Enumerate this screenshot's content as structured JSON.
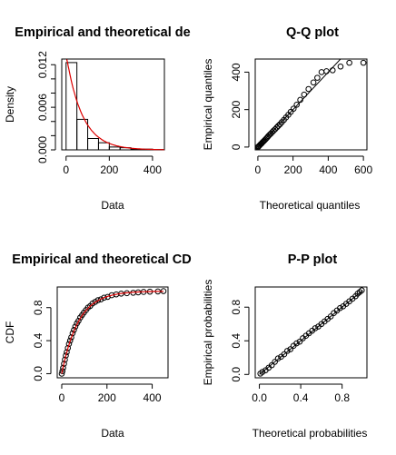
{
  "chart_data": [
    {
      "type": "histogram",
      "title": "Empirical and theoretical de",
      "xlabel": "Data",
      "ylabel": "Density",
      "xlim": [
        -20,
        455
      ],
      "ylim": [
        0,
        0.0128
      ],
      "xticks": [
        0,
        200,
        400
      ],
      "yticks": [
        0,
        0.002,
        0.004,
        0.006,
        0.008,
        0.01,
        0.012
      ],
      "ytick_labels": [
        "0.000",
        "0.006",
        "0.012"
      ],
      "ytick_labeled": [
        0,
        0.006,
        0.012
      ],
      "bins": [
        {
          "x0": 0,
          "x1": 50,
          "density": 0.0123
        },
        {
          "x0": 50,
          "x1": 100,
          "density": 0.0043
        },
        {
          "x0": 100,
          "x1": 150,
          "density": 0.0016
        },
        {
          "x0": 150,
          "x1": 200,
          "density": 0.001
        },
        {
          "x0": 200,
          "x1": 250,
          "density": 0.0004
        },
        {
          "x0": 250,
          "x1": 300,
          "density": 0.0003
        },
        {
          "x0": 300,
          "x1": 350,
          "density": 0.0001
        },
        {
          "x0": 350,
          "x1": 400,
          "density": 0.0001
        },
        {
          "x0": 400,
          "x1": 450,
          "density": 5e-05
        }
      ],
      "curve": {
        "rate": 0.0135,
        "color": "#dd0000"
      }
    },
    {
      "type": "scatter",
      "title": "Q-Q plot",
      "xlabel": "Theoretical quantiles",
      "ylabel": "Empirical quantiles",
      "xlim": [
        -15,
        620
      ],
      "ylim": [
        -15,
        470
      ],
      "xticks": [
        0,
        200,
        400,
        600
      ],
      "yticks": [
        0,
        200,
        400
      ],
      "reference_line": [
        [
          0,
          0
        ],
        [
          600,
          600
        ]
      ],
      "points": [
        [
          0,
          0
        ],
        [
          3,
          2
        ],
        [
          6,
          5
        ],
        [
          10,
          9
        ],
        [
          14,
          13
        ],
        [
          18,
          17
        ],
        [
          22,
          20
        ],
        [
          27,
          26
        ],
        [
          32,
          30
        ],
        [
          37,
          35
        ],
        [
          42,
          40
        ],
        [
          48,
          46
        ],
        [
          54,
          52
        ],
        [
          60,
          59
        ],
        [
          67,
          66
        ],
        [
          74,
          72
        ],
        [
          82,
          80
        ],
        [
          90,
          88
        ],
        [
          98,
          95
        ],
        [
          107,
          104
        ],
        [
          116,
          113
        ],
        [
          126,
          122
        ],
        [
          136,
          133
        ],
        [
          148,
          145
        ],
        [
          160,
          158
        ],
        [
          173,
          172
        ],
        [
          187,
          188
        ],
        [
          203,
          205
        ],
        [
          221,
          226
        ],
        [
          241,
          252
        ],
        [
          263,
          280
        ],
        [
          288,
          310
        ],
        [
          316,
          345
        ],
        [
          338,
          370
        ],
        [
          362,
          400
        ],
        [
          390,
          405
        ],
        [
          425,
          410
        ],
        [
          470,
          430
        ],
        [
          520,
          450
        ],
        [
          600,
          450
        ]
      ]
    },
    {
      "type": "line",
      "title": "Empirical and theoretical CD",
      "xlabel": "Data",
      "ylabel": "CDF",
      "xlim": [
        -20,
        470
      ],
      "ylim": [
        -0.05,
        1.05
      ],
      "xticks": [
        0,
        200,
        400
      ],
      "yticks": [
        0.0,
        0.4,
        0.8
      ],
      "ytick_labels": [
        "0.0",
        "0.4",
        "0.8"
      ],
      "points": [
        [
          0,
          0
        ],
        [
          3,
          0.03
        ],
        [
          6,
          0.07
        ],
        [
          10,
          0.12
        ],
        [
          14,
          0.17
        ],
        [
          18,
          0.22
        ],
        [
          22,
          0.26
        ],
        [
          27,
          0.31
        ],
        [
          32,
          0.36
        ],
        [
          37,
          0.4
        ],
        [
          42,
          0.44
        ],
        [
          48,
          0.49
        ],
        [
          54,
          0.53
        ],
        [
          60,
          0.57
        ],
        [
          67,
          0.61
        ],
        [
          74,
          0.64
        ],
        [
          82,
          0.68
        ],
        [
          90,
          0.71
        ],
        [
          98,
          0.74
        ],
        [
          107,
          0.77
        ],
        [
          116,
          0.8
        ],
        [
          126,
          0.82
        ],
        [
          136,
          0.85
        ],
        [
          148,
          0.87
        ],
        [
          160,
          0.89
        ],
        [
          173,
          0.9
        ],
        [
          187,
          0.92
        ],
        [
          203,
          0.93
        ],
        [
          221,
          0.95
        ],
        [
          241,
          0.96
        ],
        [
          263,
          0.97
        ],
        [
          288,
          0.975
        ],
        [
          316,
          0.98
        ],
        [
          338,
          0.985
        ],
        [
          362,
          0.99
        ],
        [
          390,
          0.993
        ],
        [
          425,
          0.996
        ],
        [
          450,
          1.0
        ]
      ],
      "curve": {
        "rate": 0.0135,
        "color": "#dd0000"
      }
    },
    {
      "type": "scatter",
      "title": "P-P plot",
      "xlabel": "Theoretical probabilities",
      "ylabel": "Empirical probabilities",
      "xlim": [
        -0.04,
        1.04
      ],
      "ylim": [
        -0.04,
        1.04
      ],
      "xticks": [
        0.0,
        0.4,
        0.8
      ],
      "yticks": [
        0.0,
        0.4,
        0.8
      ],
      "xtick_labels": [
        "0.0",
        "0.4",
        "0.8"
      ],
      "ytick_labels": [
        "0.0",
        "0.4",
        "0.8"
      ],
      "reference_line": [
        [
          0,
          0
        ],
        [
          1,
          1
        ]
      ],
      "points": [
        [
          0.01,
          0.01
        ],
        [
          0.03,
          0.03
        ],
        [
          0.06,
          0.05
        ],
        [
          0.09,
          0.08
        ],
        [
          0.12,
          0.11
        ],
        [
          0.15,
          0.15
        ],
        [
          0.18,
          0.19
        ],
        [
          0.21,
          0.21
        ],
        [
          0.24,
          0.24
        ],
        [
          0.27,
          0.28
        ],
        [
          0.3,
          0.3
        ],
        [
          0.33,
          0.34
        ],
        [
          0.36,
          0.37
        ],
        [
          0.39,
          0.39
        ],
        [
          0.42,
          0.43
        ],
        [
          0.45,
          0.46
        ],
        [
          0.48,
          0.49
        ],
        [
          0.51,
          0.52
        ],
        [
          0.54,
          0.55
        ],
        [
          0.57,
          0.57
        ],
        [
          0.6,
          0.6
        ],
        [
          0.63,
          0.63
        ],
        [
          0.66,
          0.66
        ],
        [
          0.69,
          0.69
        ],
        [
          0.72,
          0.73
        ],
        [
          0.75,
          0.76
        ],
        [
          0.78,
          0.79
        ],
        [
          0.81,
          0.81
        ],
        [
          0.84,
          0.84
        ],
        [
          0.87,
          0.87
        ],
        [
          0.9,
          0.9
        ],
        [
          0.93,
          0.93
        ],
        [
          0.95,
          0.96
        ],
        [
          0.97,
          0.98
        ],
        [
          0.99,
          1.0
        ]
      ]
    }
  ]
}
